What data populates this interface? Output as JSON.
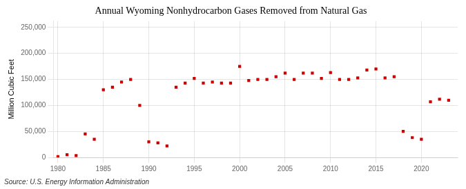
{
  "chart_data": {
    "type": "scatter",
    "title": "Annual Wyoming Nonhydrocarbon Gases Removed from Natural Gas",
    "ylabel": "Million Cubic Feet",
    "source": "Source: U.S. Energy Information Administration",
    "x": [
      1980,
      1981,
      1982,
      1983,
      1984,
      1985,
      1986,
      1987,
      1988,
      1989,
      1990,
      1991,
      1992,
      1993,
      1994,
      1995,
      1996,
      1997,
      1998,
      1999,
      2000,
      2001,
      2002,
      2003,
      2004,
      2005,
      2006,
      2007,
      2008,
      2009,
      2010,
      2011,
      2012,
      2013,
      2014,
      2015,
      2016,
      2017,
      2018,
      2019,
      2020,
      2021,
      2022,
      2023
    ],
    "values": [
      1500,
      5000,
      3500,
      45000,
      35000,
      130000,
      135000,
      145000,
      150000,
      100000,
      30000,
      28000,
      22000,
      135000,
      143000,
      152000,
      143000,
      145000,
      143000,
      143000,
      175000,
      148000,
      150000,
      150000,
      155000,
      162000,
      150000,
      162000,
      162000,
      152000,
      163000,
      150000,
      150000,
      153000,
      168000,
      170000,
      153000,
      155000,
      50000,
      38000,
      35000,
      107000,
      112000,
      110000
    ],
    "color": "#cc0000",
    "marker": "square",
    "xlim": [
      1979.5,
      2024
    ],
    "ylim": [
      0,
      262000
    ],
    "xticks": [
      1980,
      1985,
      1990,
      1995,
      2000,
      2005,
      2010,
      2015,
      2020
    ],
    "yticks": [
      0,
      {
        "value": 50000,
        "label": "50,000"
      },
      {
        "value": 100000,
        "label": "100,000"
      },
      {
        "value": 150000,
        "label": "150,000"
      },
      {
        "value": 200000,
        "label": "200,000"
      },
      {
        "value": 250000,
        "label": "250,000"
      }
    ],
    "grid": true
  }
}
